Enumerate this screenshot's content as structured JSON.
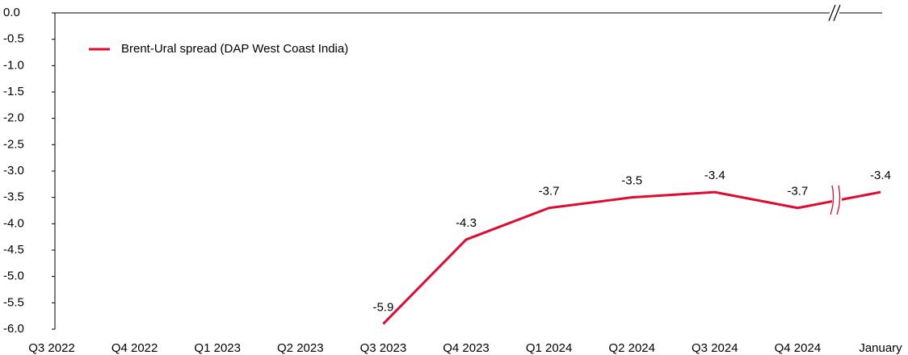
{
  "chart_data": {
    "type": "line",
    "categories": [
      "Q3 2022",
      "Q4 2022",
      "Q1 2023",
      "Q2 2023",
      "Q3 2023",
      "Q4 2023",
      "Q1 2024",
      "Q2 2024",
      "Q3 2024",
      "Q4 2024",
      "January"
    ],
    "series": [
      {
        "name": "Brent-Ural spread (DAP West Coast India)",
        "color": "#e00b2e",
        "values": [
          null,
          null,
          null,
          null,
          -5.9,
          -4.3,
          -3.7,
          -3.5,
          -3.4,
          -3.7,
          -3.4
        ]
      }
    ],
    "ylim": [
      -6,
      0
    ],
    "yticks": [
      {
        "value": 0,
        "label": "0.0"
      },
      -0.5,
      {
        "value": -1,
        "label": "-1.0"
      },
      -1.5,
      {
        "value": -2,
        "label": "-2.0"
      },
      -2.5,
      {
        "value": -3,
        "label": "-3.0"
      },
      -3.5,
      {
        "value": -4,
        "label": "-4.0"
      },
      -4.5,
      {
        "value": -5,
        "label": "-5.0"
      },
      -5.5,
      {
        "value": -6,
        "label": "-6.0"
      }
    ],
    "legend": "upper left",
    "grid": false
  }
}
